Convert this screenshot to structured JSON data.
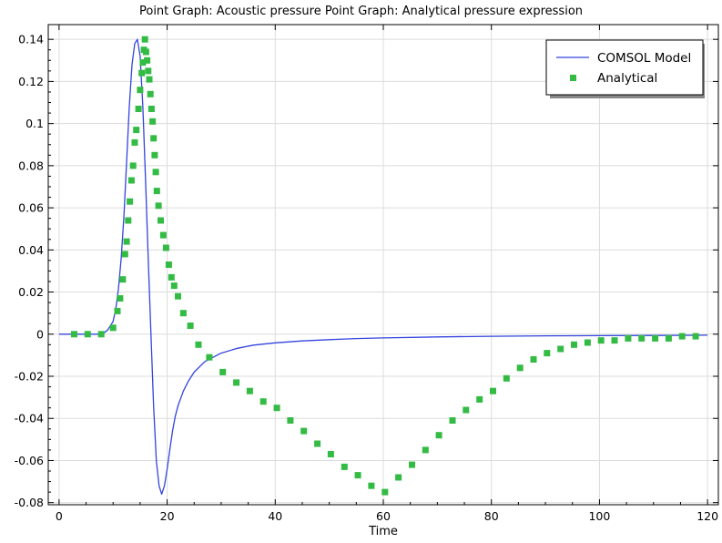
{
  "chart_data": {
    "type": "line",
    "title": "Point Graph: Acoustic pressure  Point Graph: Analytical pressure expression",
    "xlabel": "Time",
    "ylabel": "",
    "xlim": [
      -2,
      122
    ],
    "ylim": [
      -0.081,
      0.147
    ],
    "xticks": [
      0,
      20,
      40,
      60,
      80,
      100,
      120
    ],
    "yticks": [
      -0.08,
      -0.06,
      -0.04,
      -0.02,
      0,
      0.02,
      0.04,
      0.06,
      0.08,
      0.1,
      0.12,
      0.14
    ],
    "ytick_labels": [
      "-0.08",
      "-0.06",
      "-0.04",
      "-0.02",
      "0",
      "0.02",
      "0.04",
      "0.06",
      "0.08",
      "0.1",
      "0.12",
      "0.14"
    ],
    "grid": true,
    "legend_position": "top-right",
    "colors": {
      "model": "#3344dd",
      "analytical": "#33bb44"
    },
    "series": [
      {
        "name": "COMSOL Model",
        "style": "line",
        "x": [
          0,
          5,
          8,
          9,
          10,
          10.5,
          11,
          11.5,
          12,
          12.5,
          13,
          13.5,
          14,
          14.5,
          15,
          15.5,
          16,
          16.5,
          17,
          17.5,
          18,
          18.5,
          19,
          19.5,
          20,
          20.5,
          21,
          21.5,
          22,
          23,
          24,
          25,
          27,
          30,
          33,
          36,
          40,
          45,
          50,
          55,
          60,
          70,
          80,
          90,
          100,
          110,
          120
        ],
        "y": [
          0,
          0,
          0,
          0.002,
          0.006,
          0.012,
          0.022,
          0.036,
          0.056,
          0.082,
          0.108,
          0.128,
          0.138,
          0.14,
          0.132,
          0.108,
          0.074,
          0.036,
          0,
          -0.034,
          -0.06,
          -0.072,
          -0.076,
          -0.072,
          -0.064,
          -0.055,
          -0.046,
          -0.039,
          -0.034,
          -0.027,
          -0.022,
          -0.018,
          -0.013,
          -0.009,
          -0.0067,
          -0.0052,
          -0.0041,
          -0.0032,
          -0.0026,
          -0.0021,
          -0.0018,
          -0.0013,
          -0.001,
          -0.0008,
          -0.0007,
          -0.0006,
          -0.0005
        ]
      },
      {
        "name": "Analytical",
        "style": "markers",
        "x": [
          2.8,
          5.3,
          7.8,
          10.0,
          10.8,
          11.3,
          11.8,
          12.2,
          12.5,
          12.8,
          13.1,
          13.4,
          13.7,
          14.0,
          14.3,
          14.7,
          15.0,
          15.3,
          15.5,
          15.7,
          15.9,
          16.1,
          16.3,
          16.5,
          16.7,
          16.9,
          17.1,
          17.3,
          17.5,
          17.7,
          17.9,
          18.1,
          18.4,
          18.8,
          19.3,
          19.8,
          20.3,
          20.8,
          21.3,
          22.0,
          23.0,
          24.3,
          25.8,
          27.8,
          30.3,
          32.8,
          35.3,
          37.8,
          40.3,
          42.8,
          45.3,
          47.8,
          50.3,
          52.8,
          55.3,
          57.8,
          60.3,
          62.8,
          65.3,
          67.8,
          70.3,
          72.8,
          75.3,
          77.8,
          80.3,
          82.8,
          85.3,
          87.8,
          90.3,
          92.8,
          95.3,
          97.8,
          100.3,
          102.8,
          105.3,
          107.8,
          110.3,
          112.8,
          115.3,
          117.8
        ],
        "y": [
          0,
          0,
          0,
          0.003,
          0.011,
          0.017,
          0.026,
          0.038,
          0.044,
          0.054,
          0.063,
          0.073,
          0.08,
          0.091,
          0.097,
          0.107,
          0.116,
          0.124,
          0.129,
          0.135,
          0.14,
          0.134,
          0.13,
          0.125,
          0.121,
          0.114,
          0.107,
          0.101,
          0.093,
          0.085,
          0.077,
          0.068,
          0.061,
          0.054,
          0.047,
          0.041,
          0.033,
          0.027,
          0.023,
          0.018,
          0.01,
          0.004,
          -0.005,
          -0.011,
          -0.018,
          -0.023,
          -0.027,
          -0.032,
          -0.035,
          -0.041,
          -0.046,
          -0.052,
          -0.057,
          -0.063,
          -0.067,
          -0.072,
          -0.075,
          -0.068,
          -0.062,
          -0.055,
          -0.048,
          -0.041,
          -0.036,
          -0.031,
          -0.027,
          -0.021,
          -0.016,
          -0.012,
          -0.009,
          -0.007,
          -0.005,
          -0.004,
          -0.003,
          -0.003,
          -0.002,
          -0.002,
          -0.002,
          -0.002,
          -0.001,
          -0.001
        ]
      }
    ]
  }
}
